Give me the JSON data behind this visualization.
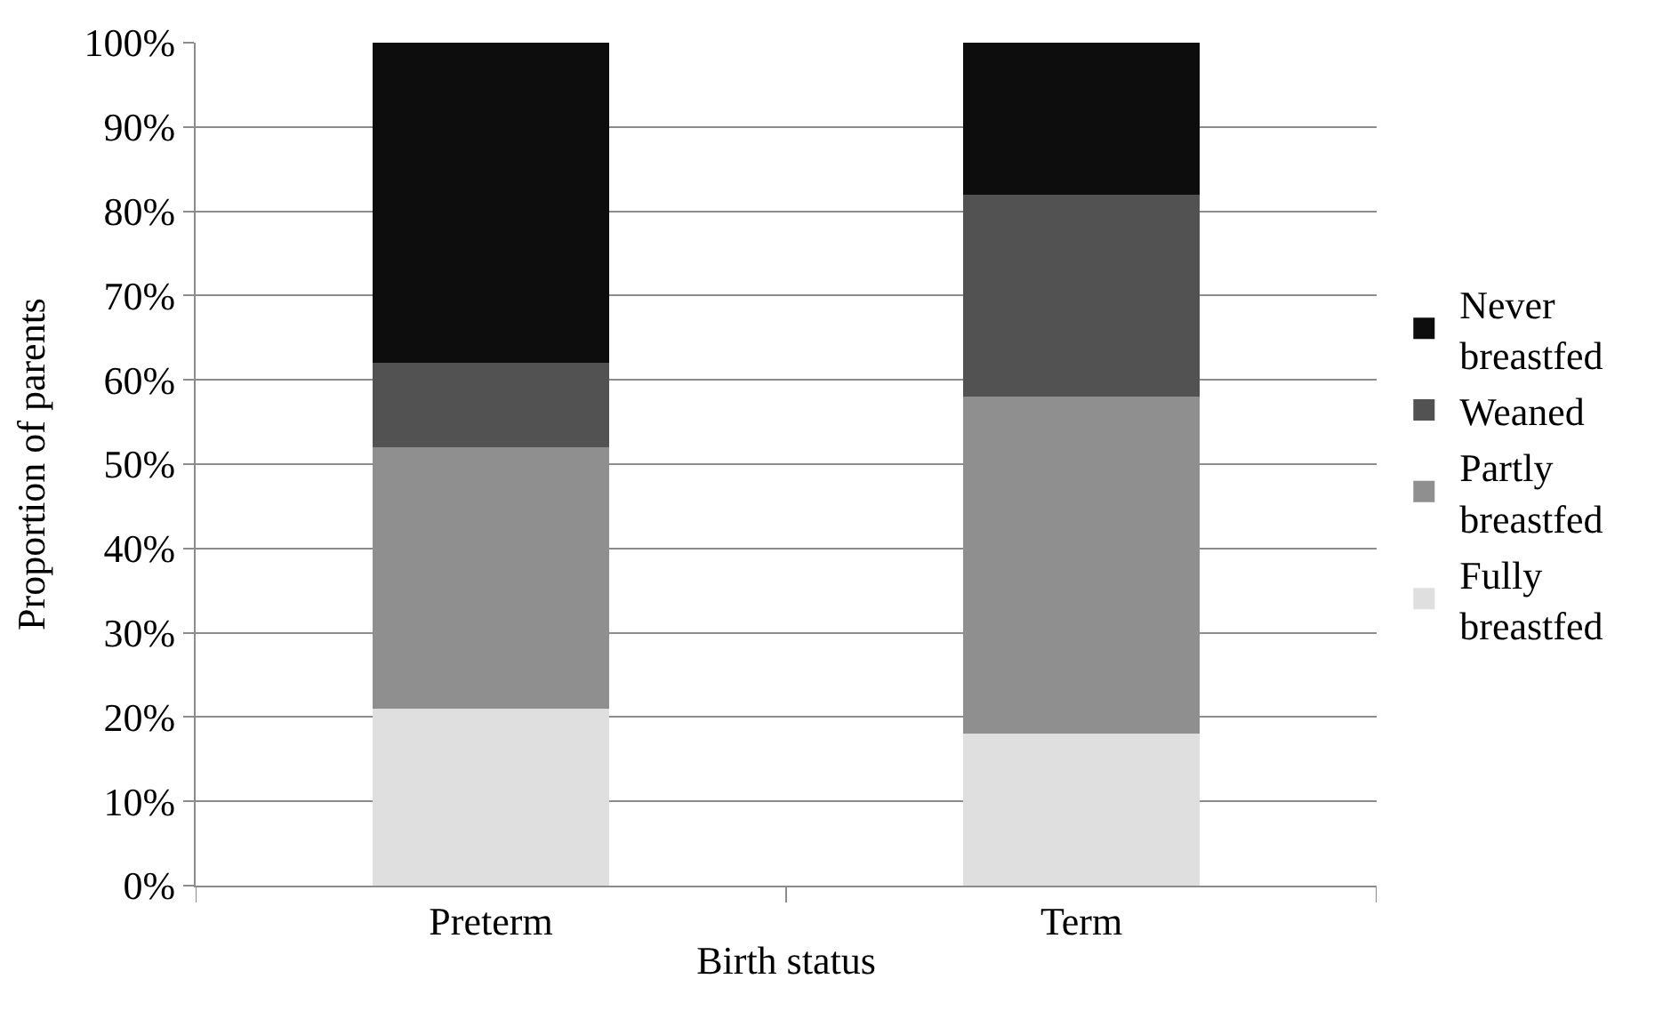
{
  "chart_data": {
    "type": "bar",
    "stacked": true,
    "xlabel": "Birth status",
    "ylabel": "Proportion of parents",
    "categories": [
      "Preterm",
      "Term"
    ],
    "series": [
      {
        "name": "Fully breastfed",
        "color": "#dfdfdf",
        "values": [
          21,
          18
        ]
      },
      {
        "name": "Partly breastfed",
        "color": "#8f8f8f",
        "values": [
          31,
          40
        ]
      },
      {
        "name": "Weaned",
        "color": "#525252",
        "values": [
          10,
          24
        ]
      },
      {
        "name": "Never breastfed",
        "color": "#0d0d0d",
        "values": [
          38,
          18
        ]
      }
    ],
    "ylim": [
      0,
      100
    ],
    "yticks": [
      {
        "value": 0,
        "label": "0%"
      },
      {
        "value": 10,
        "label": "10%"
      },
      {
        "value": 20,
        "label": "20%"
      },
      {
        "value": 30,
        "label": "30%"
      },
      {
        "value": 40,
        "label": "40%"
      },
      {
        "value": 50,
        "label": "50%"
      },
      {
        "value": 60,
        "label": "60%"
      },
      {
        "value": 70,
        "label": "70%"
      },
      {
        "value": 80,
        "label": "80%"
      },
      {
        "value": 90,
        "label": "90%"
      },
      {
        "value": 100,
        "label": "100%"
      }
    ],
    "grid": "y",
    "legend": "right"
  }
}
